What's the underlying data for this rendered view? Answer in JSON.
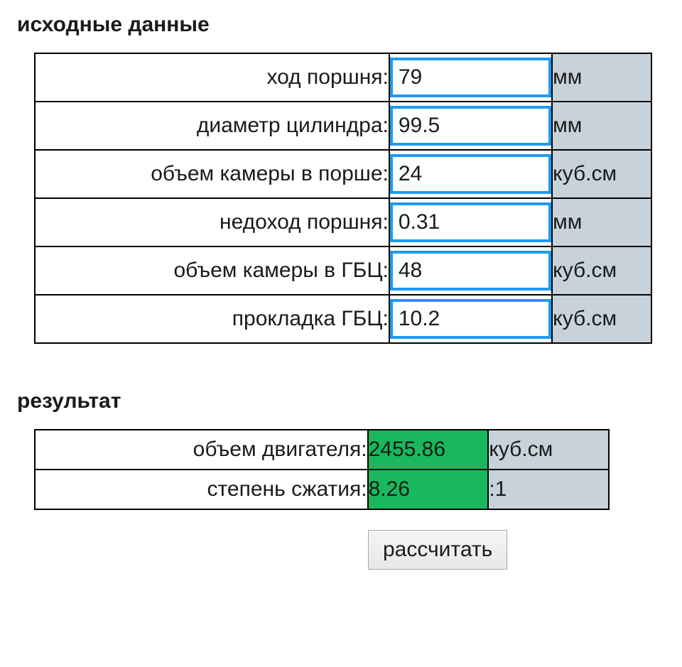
{
  "headings": {
    "inputs": "исходные данные",
    "result": "результат"
  },
  "inputs": {
    "rows": [
      {
        "label": "ход поршня:",
        "value": "79",
        "unit": "мм"
      },
      {
        "label": "диаметр цилиндра:",
        "value": "99.5",
        "unit": "мм"
      },
      {
        "label": "объем камеры в порше:",
        "value": "24",
        "unit": "куб.см"
      },
      {
        "label": "недоход поршня:",
        "value": "0.31",
        "unit": "мм"
      },
      {
        "label": "объем камеры в ГБЦ:",
        "value": "48",
        "unit": "куб.см"
      },
      {
        "label": "прокладка ГБЦ:",
        "value": "10.2",
        "unit": "куб.см"
      }
    ]
  },
  "results": {
    "rows": [
      {
        "label": "объем двигателя:",
        "value": "2455.86",
        "unit": "куб.см"
      },
      {
        "label": "степень сжатия:",
        "value": "8.26",
        "unit": ":1"
      }
    ]
  },
  "button": {
    "calculate": "рассчитать"
  },
  "colors": {
    "input_border": "#1e9bf0",
    "unit_bg": "#c7d2da",
    "result_value_bg": "#19b85c",
    "table_border": "#000000",
    "text": "#1a1a1a",
    "background": "#ffffff"
  },
  "typography": {
    "heading_fontsize": 30,
    "cell_fontsize": 30,
    "heading_weight": "bold"
  }
}
